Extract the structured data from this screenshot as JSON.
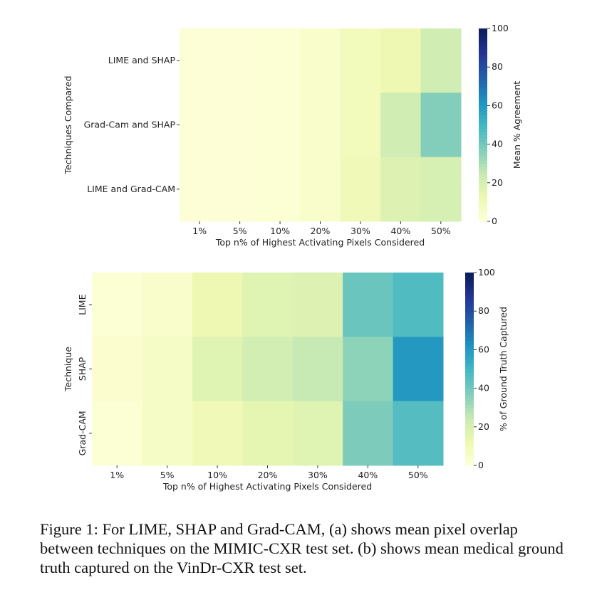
{
  "colormap": "YlGnBu",
  "chart_data": [
    {
      "type": "heatmap",
      "xlabel": "Top n% of Highest Activating Pixels Considered",
      "ylabel": "Techniques Compared",
      "colorbar_label": "Mean % Agreement",
      "categories": [
        "1%",
        "5%",
        "10%",
        "20%",
        "30%",
        "40%",
        "50%"
      ],
      "rows": [
        "LIME and SHAP",
        "Grad-Cam and SHAP",
        "LIME and Grad-CAM"
      ],
      "values": [
        [
          1,
          1,
          2,
          4,
          9,
          12,
          22
        ],
        [
          1,
          1,
          2,
          4,
          9,
          22,
          37
        ],
        [
          1,
          1,
          2,
          4,
          10,
          18,
          20
        ]
      ],
      "vlim": [
        0,
        100
      ],
      "colorbar_ticks": [
        "0",
        "20",
        "40",
        "60",
        "80",
        "100"
      ]
    },
    {
      "type": "heatmap",
      "xlabel": "Top n% of Highest Activating Pixels Considered",
      "ylabel": "Technique",
      "colorbar_label": "% of Ground Truth Captured",
      "categories": [
        "1%",
        "5%",
        "10%",
        "20%",
        "30%",
        "40%",
        "50%"
      ],
      "rows": [
        "LIME",
        "SHAP",
        "Grad-CAM"
      ],
      "values": [
        [
          2,
          4,
          12,
          17,
          18,
          42,
          47
        ],
        [
          3,
          6,
          17,
          21,
          25,
          35,
          60
        ],
        [
          2,
          6,
          10,
          15,
          17,
          38,
          46
        ]
      ],
      "vlim": [
        0,
        100
      ],
      "colorbar_ticks": [
        "0",
        "20",
        "40",
        "60",
        "80",
        "100"
      ]
    }
  ],
  "caption": "Figure 1: For LIME, SHAP and Grad-CAM, (a) shows mean pixel overlap between techniques on the MIMIC-CXR test set. (b) shows mean medical ground truth captured on the VinDr-CXR test set."
}
